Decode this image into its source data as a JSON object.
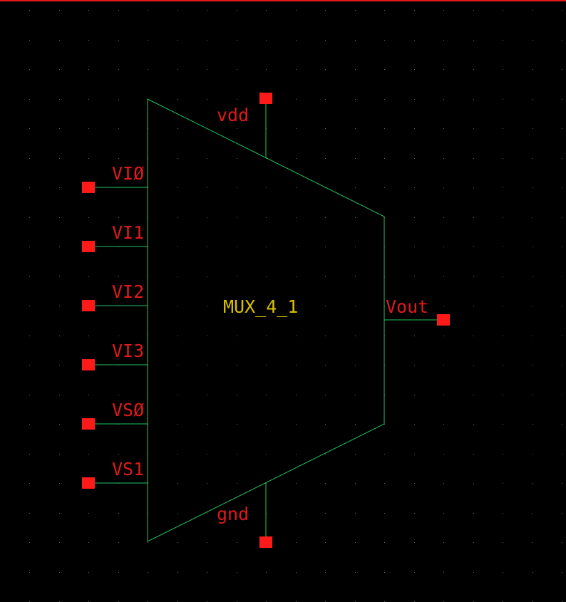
{
  "colors": {
    "background": "#000000",
    "wire": "#22c55e",
    "pin": "#ff1a1a",
    "pin_label": "#e01a1a",
    "symbol_name": "#d9c000",
    "grid_dot": "#6a6a6a",
    "top_border": "#e01a1a"
  },
  "symbol": {
    "name": "MUX_4_1"
  },
  "pins": {
    "vdd": "vdd",
    "gnd": "gnd",
    "vout": "Vout",
    "inputs": [
      "VIØ",
      "VI1",
      "VI2",
      "VI3",
      "VSØ",
      "VS1"
    ]
  }
}
